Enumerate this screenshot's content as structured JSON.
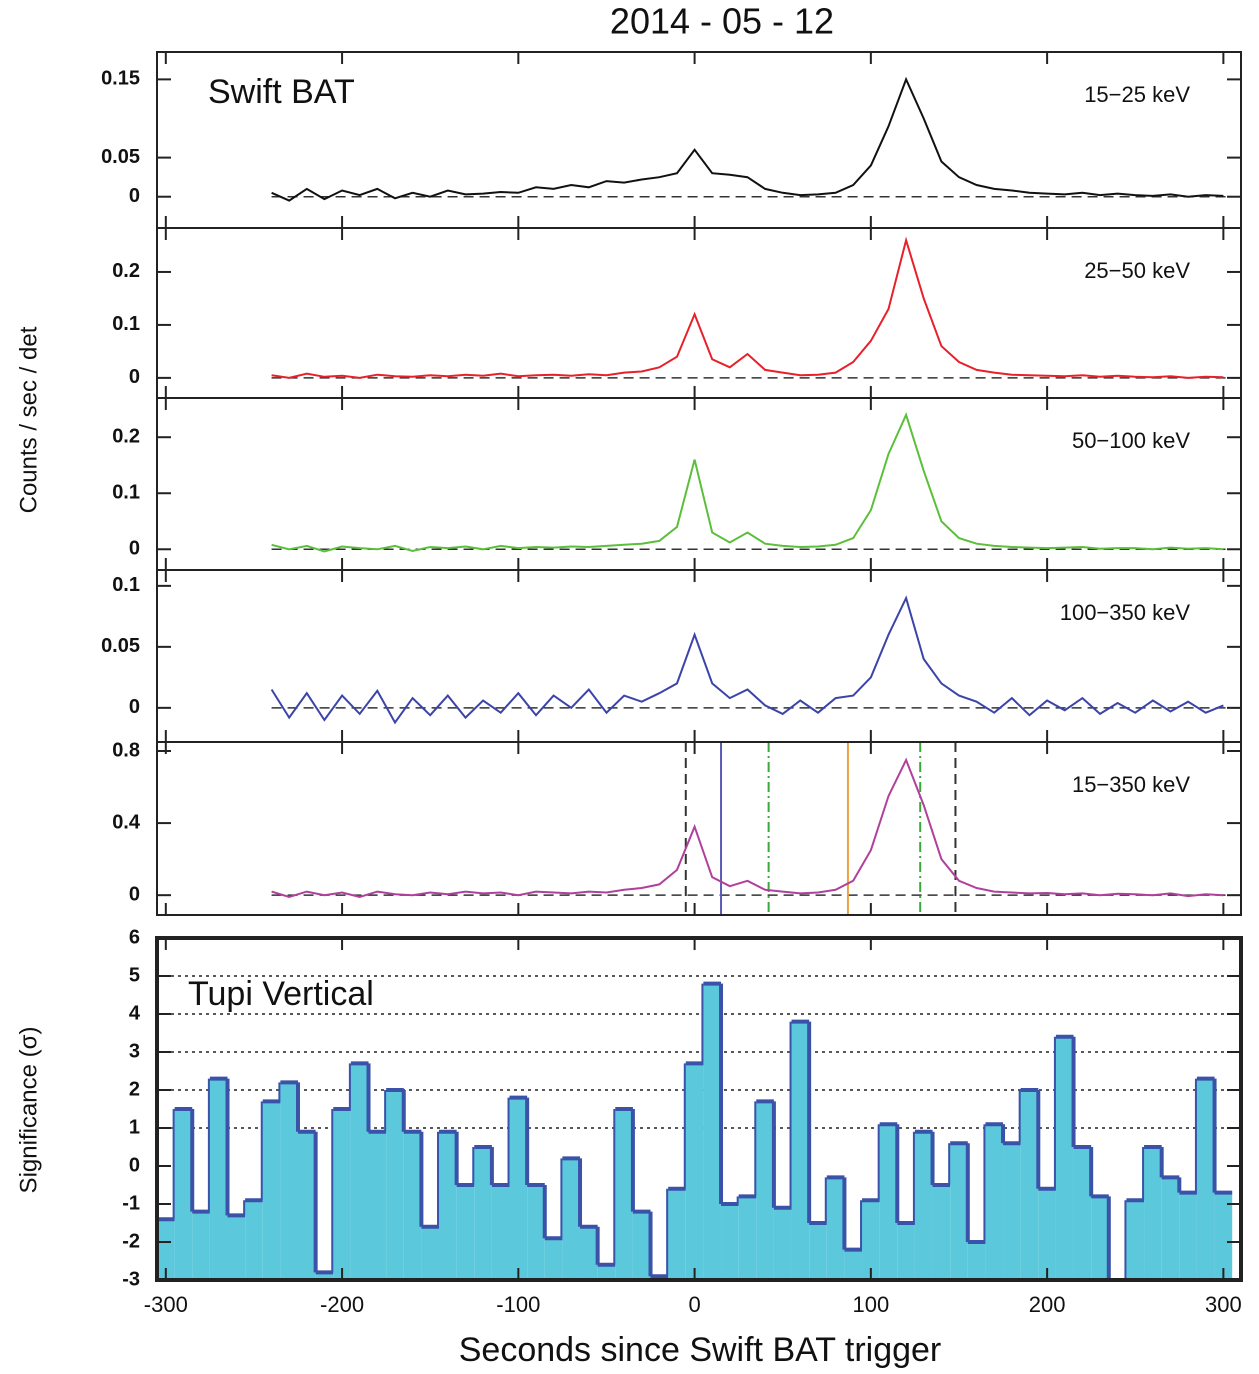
{
  "chart_data": [
    {
      "type": "line",
      "title": "2014 - 05 - 12",
      "y_label": "Counts / sec / det",
      "annotation": "Swift BAT",
      "xlim": [
        -305,
        310
      ],
      "xticks": [
        -300,
        -200,
        -100,
        0,
        100,
        200,
        300
      ],
      "ylim": [
        -0.04,
        0.185
      ],
      "yticks": [
        0,
        0.05,
        0.15
      ],
      "baseline": 0,
      "x": [
        -240,
        -230,
        -220,
        -210,
        -200,
        -190,
        -180,
        -170,
        -160,
        -150,
        -140,
        -130,
        -120,
        -110,
        -100,
        -90,
        -80,
        -70,
        -60,
        -50,
        -40,
        -30,
        -20,
        -10,
        0,
        10,
        20,
        30,
        40,
        50,
        60,
        70,
        80,
        90,
        100,
        110,
        120,
        130,
        140,
        150,
        160,
        170,
        180,
        190,
        200,
        210,
        220,
        230,
        240,
        250,
        260,
        270,
        280,
        290,
        300
      ],
      "series": [
        {
          "name": "15−25 keV",
          "color": "#111111",
          "values": [
            0.005,
            -0.005,
            0.01,
            -0.003,
            0.008,
            0.002,
            0.01,
            -0.002,
            0.005,
            0.0,
            0.008,
            0.003,
            0.004,
            0.006,
            0.005,
            0.012,
            0.01,
            0.015,
            0.012,
            0.02,
            0.018,
            0.022,
            0.025,
            0.03,
            0.06,
            0.03,
            0.028,
            0.025,
            0.01,
            0.005,
            0.002,
            0.003,
            0.005,
            0.015,
            0.04,
            0.09,
            0.15,
            0.1,
            0.045,
            0.025,
            0.015,
            0.01,
            0.008,
            0.005,
            0.004,
            0.003,
            0.005,
            0.002,
            0.004,
            0.002,
            0.001,
            0.003,
            0.0,
            0.002,
            0.001
          ]
        }
      ]
    },
    {
      "type": "line",
      "xlim": [
        -305,
        310
      ],
      "xticks": [
        -300,
        -200,
        -100,
        0,
        100,
        200,
        300
      ],
      "ylim": [
        -0.038,
        0.283
      ],
      "yticks": [
        0,
        0.1,
        0.2
      ],
      "baseline": 0,
      "x": [
        -240,
        -230,
        -220,
        -210,
        -200,
        -190,
        -180,
        -170,
        -160,
        -150,
        -140,
        -130,
        -120,
        -110,
        -100,
        -90,
        -80,
        -70,
        -60,
        -50,
        -40,
        -30,
        -20,
        -10,
        0,
        10,
        20,
        30,
        40,
        50,
        60,
        70,
        80,
        90,
        100,
        110,
        120,
        130,
        140,
        150,
        160,
        170,
        180,
        190,
        200,
        210,
        220,
        230,
        240,
        250,
        260,
        270,
        280,
        290,
        300
      ],
      "series": [
        {
          "name": "25−50 keV",
          "color": "#e8202a",
          "values": [
            0.005,
            0.0,
            0.008,
            0.002,
            0.004,
            0.0,
            0.006,
            0.003,
            0.002,
            0.005,
            0.003,
            0.006,
            0.004,
            0.008,
            0.003,
            0.005,
            0.006,
            0.004,
            0.007,
            0.005,
            0.01,
            0.012,
            0.02,
            0.04,
            0.12,
            0.035,
            0.02,
            0.045,
            0.015,
            0.01,
            0.005,
            0.006,
            0.01,
            0.03,
            0.07,
            0.13,
            0.26,
            0.15,
            0.06,
            0.03,
            0.015,
            0.01,
            0.006,
            0.005,
            0.004,
            0.003,
            0.005,
            0.002,
            0.004,
            0.002,
            0.001,
            0.003,
            0.0,
            0.002,
            0.001
          ]
        }
      ]
    },
    {
      "type": "line",
      "xlim": [
        -305,
        310
      ],
      "xticks": [
        -300,
        -200,
        -100,
        0,
        100,
        200,
        300
      ],
      "ylim": [
        -0.037,
        0.27
      ],
      "yticks": [
        0,
        0.1,
        0.2
      ],
      "baseline": 0,
      "x": [
        -240,
        -230,
        -220,
        -210,
        -200,
        -190,
        -180,
        -170,
        -160,
        -150,
        -140,
        -130,
        -120,
        -110,
        -100,
        -90,
        -80,
        -70,
        -60,
        -50,
        -40,
        -30,
        -20,
        -10,
        0,
        10,
        20,
        30,
        40,
        50,
        60,
        70,
        80,
        90,
        100,
        110,
        120,
        130,
        140,
        150,
        160,
        170,
        180,
        190,
        200,
        210,
        220,
        230,
        240,
        250,
        260,
        270,
        280,
        290,
        300
      ],
      "series": [
        {
          "name": "50−100 keV",
          "color": "#5cbf3a",
          "values": [
            0.008,
            0.0,
            0.006,
            -0.004,
            0.005,
            0.002,
            0.0,
            0.006,
            -0.003,
            0.004,
            0.002,
            0.005,
            0.0,
            0.006,
            0.002,
            0.004,
            0.003,
            0.005,
            0.004,
            0.006,
            0.008,
            0.01,
            0.015,
            0.04,
            0.16,
            0.03,
            0.012,
            0.03,
            0.01,
            0.006,
            0.004,
            0.005,
            0.008,
            0.02,
            0.07,
            0.17,
            0.24,
            0.14,
            0.05,
            0.02,
            0.01,
            0.006,
            0.004,
            0.003,
            0.002,
            0.003,
            0.004,
            0.001,
            0.002,
            0.002,
            0.0,
            0.003,
            0.001,
            0.002,
            0.0
          ]
        }
      ]
    },
    {
      "type": "line",
      "xlim": [
        -305,
        310
      ],
      "xticks": [
        -300,
        -200,
        -100,
        0,
        100,
        200,
        300
      ],
      "ylim": [
        -0.028,
        0.113
      ],
      "yticks": [
        0,
        0.05,
        0.1
      ],
      "baseline": 0,
      "x": [
        -240,
        -230,
        -220,
        -210,
        -200,
        -190,
        -180,
        -170,
        -160,
        -150,
        -140,
        -130,
        -120,
        -110,
        -100,
        -90,
        -80,
        -70,
        -60,
        -50,
        -40,
        -30,
        -20,
        -10,
        0,
        10,
        20,
        30,
        40,
        50,
        60,
        70,
        80,
        90,
        100,
        110,
        120,
        130,
        140,
        150,
        160,
        170,
        180,
        190,
        200,
        210,
        220,
        230,
        240,
        250,
        260,
        270,
        280,
        290,
        300
      ],
      "series": [
        {
          "name": "100−350 keV",
          "color": "#3b44a8",
          "values": [
            0.015,
            -0.008,
            0.012,
            -0.01,
            0.01,
            -0.005,
            0.014,
            -0.012,
            0.008,
            -0.006,
            0.01,
            -0.008,
            0.006,
            -0.004,
            0.012,
            -0.006,
            0.01,
            0.0,
            0.015,
            -0.004,
            0.01,
            0.005,
            0.012,
            0.02,
            0.06,
            0.02,
            0.008,
            0.015,
            0.002,
            -0.005,
            0.006,
            -0.004,
            0.008,
            0.01,
            0.025,
            0.06,
            0.09,
            0.04,
            0.02,
            0.01,
            0.005,
            -0.004,
            0.008,
            -0.006,
            0.006,
            -0.002,
            0.008,
            -0.005,
            0.004,
            -0.004,
            0.006,
            -0.003,
            0.005,
            -0.004,
            0.002
          ]
        }
      ]
    },
    {
      "type": "line",
      "xlim": [
        -305,
        310
      ],
      "xticks": [
        -300,
        -200,
        -100,
        0,
        100,
        200,
        300
      ],
      "ylim": [
        -0.11,
        0.85
      ],
      "yticks": [
        0,
        0.4,
        0.8
      ],
      "baseline": 0,
      "markers": [
        {
          "x": -5,
          "color": "#333333",
          "style": "dashed"
        },
        {
          "x": 15,
          "color": "#5a5ab8",
          "style": "solid"
        },
        {
          "x": 42,
          "color": "#3aa83a",
          "style": "dashdot"
        },
        {
          "x": 87,
          "color": "#f0a040",
          "style": "solid"
        },
        {
          "x": 128,
          "color": "#3aa83a",
          "style": "dashdot"
        },
        {
          "x": 148,
          "color": "#333333",
          "style": "dashed"
        }
      ],
      "x": [
        -240,
        -230,
        -220,
        -210,
        -200,
        -190,
        -180,
        -170,
        -160,
        -150,
        -140,
        -130,
        -120,
        -110,
        -100,
        -90,
        -80,
        -70,
        -60,
        -50,
        -40,
        -30,
        -20,
        -10,
        0,
        10,
        20,
        30,
        40,
        50,
        60,
        70,
        80,
        90,
        100,
        110,
        120,
        130,
        140,
        150,
        160,
        170,
        180,
        190,
        200,
        210,
        220,
        230,
        240,
        250,
        260,
        270,
        280,
        290,
        300
      ],
      "series": [
        {
          "name": "15−350 keV",
          "color": "#b0409c",
          "values": [
            0.02,
            -0.01,
            0.02,
            0.0,
            0.015,
            -0.01,
            0.02,
            0.005,
            0.0,
            0.015,
            0.005,
            0.02,
            0.01,
            0.015,
            0.0,
            0.02,
            0.015,
            0.01,
            0.02,
            0.015,
            0.03,
            0.04,
            0.06,
            0.14,
            0.38,
            0.1,
            0.05,
            0.08,
            0.03,
            0.02,
            0.01,
            0.015,
            0.03,
            0.08,
            0.25,
            0.55,
            0.75,
            0.5,
            0.2,
            0.08,
            0.04,
            0.02,
            0.015,
            0.01,
            0.012,
            0.005,
            0.01,
            0.0,
            0.008,
            0.005,
            0.0,
            0.01,
            -0.005,
            0.005,
            0.0
          ]
        }
      ]
    },
    {
      "type": "histogram",
      "annotation": "Tupi Vertical",
      "y_label": "Significance (σ)",
      "x_label": "Seconds since Swift BAT trigger",
      "xlim": [
        -305,
        310
      ],
      "xticks": [
        -300,
        -200,
        -100,
        0,
        100,
        200,
        300
      ],
      "ylim": [
        -3,
        6
      ],
      "yticks": [
        -3,
        -2,
        -1,
        0,
        1,
        2,
        3,
        4,
        5,
        6
      ],
      "grid_lines": [
        1,
        2,
        3,
        4,
        5
      ],
      "color": "#5bc8dc",
      "edge_color": "#3a52a8",
      "bins": [
        -305,
        -295,
        -285,
        -275,
        -265,
        -255,
        -245,
        -235,
        -225,
        -215,
        -205,
        -195,
        -185,
        -175,
        -165,
        -155,
        -145,
        -135,
        -125,
        -115,
        -105,
        -95,
        -85,
        -75,
        -65,
        -55,
        -45,
        -35,
        -25,
        -15,
        -5,
        5,
        15,
        25,
        35,
        45,
        55,
        65,
        75,
        85,
        95,
        105,
        115,
        125,
        135,
        145,
        155,
        165,
        175,
        185,
        195,
        205,
        215,
        225,
        235,
        245,
        255,
        265,
        275,
        285,
        295,
        305
      ],
      "values": [
        -1.4,
        1.5,
        -1.2,
        2.3,
        -1.3,
        -0.9,
        1.7,
        2.2,
        0.9,
        -2.8,
        1.5,
        2.7,
        0.9,
        2.0,
        0.9,
        -1.6,
        0.9,
        -0.5,
        0.5,
        -0.5,
        1.8,
        -0.5,
        -1.9,
        0.2,
        -1.6,
        -2.6,
        1.5,
        -1.2,
        -2.9,
        -0.6,
        2.7,
        4.8,
        -1.0,
        -0.8,
        1.7,
        -1.1,
        3.8,
        -1.5,
        -0.3,
        -2.2,
        -0.9,
        1.1,
        -1.5,
        0.9,
        -0.5,
        0.6,
        -2.0,
        1.1,
        0.6,
        2.0,
        -0.6,
        3.4,
        0.5,
        -0.8,
        -3.0,
        -0.9,
        0.5,
        -0.3,
        -0.7,
        2.3,
        -0.7
      ]
    }
  ]
}
